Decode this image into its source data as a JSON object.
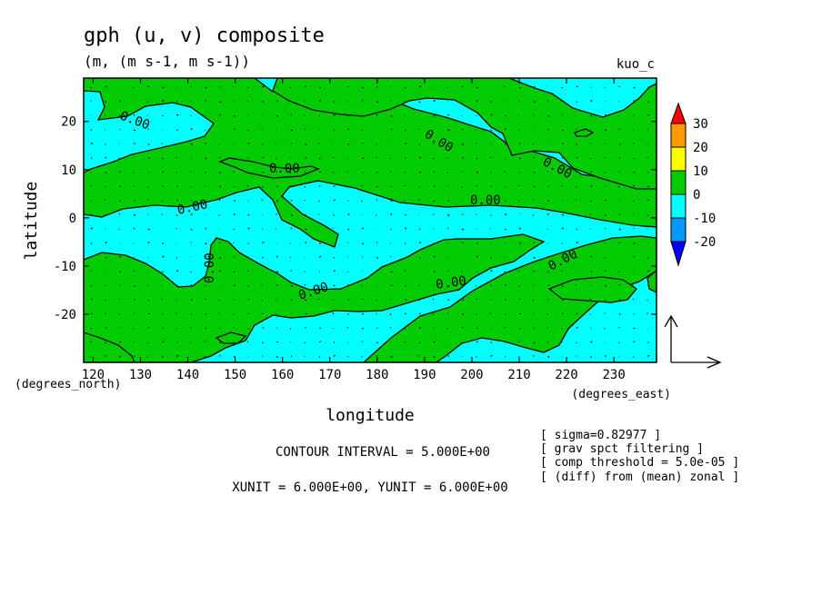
{
  "chart_data": {
    "type": "heatmap",
    "title": "gph (u, v) composite",
    "subtitle": "(m, (m s-1, m s-1))",
    "corner_label": "kuo_c",
    "xlabel": "longitude",
    "ylabel": "latitude",
    "x_unit_label": "(degrees_east)",
    "y_unit_label": "(degrees_north)",
    "xlim": [
      118,
      239
    ],
    "ylim": [
      -30,
      29
    ],
    "x_ticks": [
      120,
      130,
      140,
      150,
      160,
      170,
      180,
      190,
      200,
      210,
      220,
      230
    ],
    "y_ticks": [
      20,
      10,
      0,
      -10,
      -20
    ],
    "colorbar": {
      "levels": [
        30,
        20,
        10,
        0,
        -10,
        -20
      ],
      "colors": [
        "#ff0000",
        "#ff9900",
        "#ffff00",
        "#00cc00",
        "#00ffff",
        "#0099ff",
        "#0000ff"
      ]
    },
    "contour_label": "0.00",
    "contour_interval_text": "CONTOUR INTERVAL = 5.000E+00",
    "unit_vector_text": "XUNIT = 6.000E+00, YUNIT = 6.000E+00",
    "notes": [
      "[ sigma=0.82977 ]",
      "[ grav spct filtering ]",
      "[ comp threshold = 5.0e-05 ]",
      "[ (diff) from (mean) zonal ]"
    ]
  }
}
